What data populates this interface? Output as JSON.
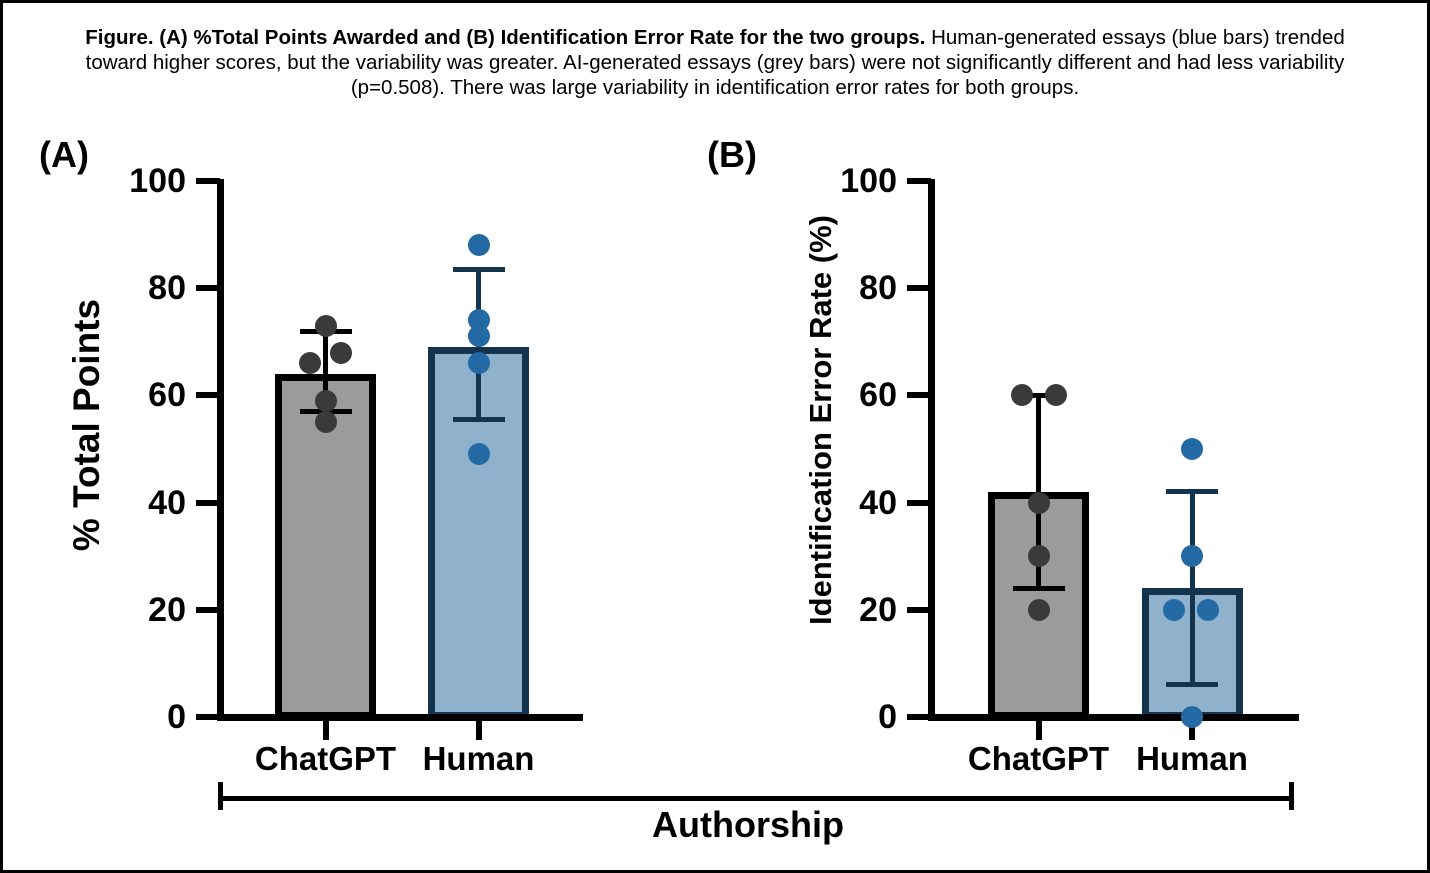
{
  "figure": {
    "caption_bold": "Figure. (A) %Total Points Awarded and (B) Identification Error Rate for the two groups.",
    "caption_rest": " Human-generated essays (blue bars) trended toward higher scores, but the variability was greater. AI-generated essays (grey bars) were not significantly different and had less variability (p=0.508). There was large variability in identification error rates for both groups."
  },
  "xlabel": "Authorship",
  "colors": {
    "black": "#000000",
    "grey_fill": "#9B9B9B",
    "grey_point": "#3A3A3A",
    "blue_fill": "#8FB1CC",
    "navy": "#14334D",
    "blue_point": "#2369A3"
  },
  "chart_data": [
    {
      "type": "bar",
      "panel_label": "(A)",
      "ylabel": "% Total Points",
      "xlabel": "Authorship",
      "ylim": [
        0,
        100
      ],
      "yticks": [
        0,
        20,
        40,
        60,
        80,
        100
      ],
      "grid": false,
      "categories": [
        "ChatGPT",
        "Human"
      ],
      "series": [
        {
          "name": "ChatGPT",
          "bar_mean": 64,
          "error_low": 57,
          "error_high": 72,
          "points": [
            73,
            68,
            66,
            59,
            55
          ],
          "point_dx": [
            0,
            15,
            -16,
            0,
            0
          ],
          "fill": "grey_fill",
          "stroke": "black",
          "error_color": "black",
          "point_color": "grey_point"
        },
        {
          "name": "Human",
          "bar_mean": 69,
          "error_low": 55.5,
          "error_high": 83.5,
          "points": [
            88,
            74,
            71,
            66,
            49
          ],
          "point_dx": [
            0,
            0,
            0,
            0,
            0
          ],
          "fill": "blue_fill",
          "stroke": "navy",
          "error_color": "navy",
          "point_color": "blue_point"
        }
      ]
    },
    {
      "type": "bar",
      "panel_label": "(B)",
      "ylabel": "Identification Error Rate (%)",
      "xlabel": "Authorship",
      "ylim": [
        0,
        100
      ],
      "yticks": [
        0,
        20,
        40,
        60,
        80,
        100
      ],
      "grid": false,
      "categories": [
        "ChatGPT",
        "Human"
      ],
      "series": [
        {
          "name": "ChatGPT",
          "bar_mean": 42,
          "error_low": 24,
          "error_high": 60,
          "points": [
            60,
            60,
            40,
            30,
            20
          ],
          "point_dx": [
            -17,
            17,
            0,
            0,
            0
          ],
          "fill": "grey_fill",
          "stroke": "black",
          "error_color": "black",
          "point_color": "grey_point"
        },
        {
          "name": "Human",
          "bar_mean": 24,
          "error_low": 6,
          "error_high": 42,
          "points": [
            50,
            30,
            20,
            20,
            0
          ],
          "point_dx": [
            0,
            0,
            -18,
            16,
            0
          ],
          "fill": "blue_fill",
          "stroke": "navy",
          "error_color": "navy",
          "point_color": "blue_point"
        }
      ]
    }
  ]
}
